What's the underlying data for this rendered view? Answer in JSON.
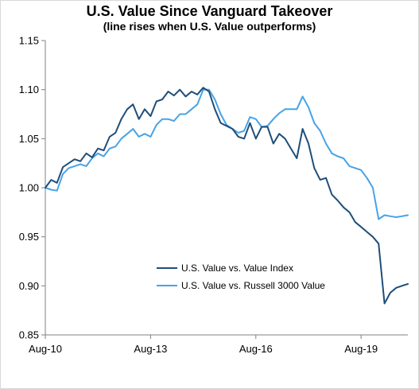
{
  "chart_data": {
    "type": "line",
    "title": "U.S. Value Since Vanguard Takeover",
    "subtitle": "(line rises when U.S. Value outperforms)",
    "xlabel": "",
    "ylabel": "",
    "ylim": [
      0.85,
      1.15
    ],
    "yticks": [
      "1.15",
      "1.10",
      "1.05",
      "1.00",
      "0.95",
      "0.90",
      "0.85"
    ],
    "xticks": [
      "Aug-10",
      "Aug-13",
      "Aug-16",
      "Aug-19"
    ],
    "x_range": [
      "Aug-10",
      "Dec-20"
    ],
    "grid": false,
    "legend_position": "bottom-center",
    "x": [
      "Aug-10",
      "Oct-10",
      "Dec-10",
      "Feb-11",
      "Apr-11",
      "Jun-11",
      "Aug-11",
      "Oct-11",
      "Dec-11",
      "Feb-12",
      "Apr-12",
      "Jun-12",
      "Aug-12",
      "Oct-12",
      "Dec-12",
      "Feb-13",
      "Apr-13",
      "Jun-13",
      "Aug-13",
      "Oct-13",
      "Dec-13",
      "Feb-14",
      "Apr-14",
      "Jun-14",
      "Aug-14",
      "Oct-14",
      "Dec-14",
      "Feb-15",
      "Apr-15",
      "Jun-15",
      "Aug-15",
      "Oct-15",
      "Dec-15",
      "Feb-16",
      "Apr-16",
      "Jun-16",
      "Aug-16",
      "Oct-16",
      "Dec-16",
      "Feb-17",
      "Apr-17",
      "Jun-17",
      "Aug-17",
      "Oct-17",
      "Dec-17",
      "Feb-18",
      "Apr-18",
      "Jun-18",
      "Aug-18",
      "Oct-18",
      "Dec-18",
      "Feb-19",
      "Apr-19",
      "Jun-19",
      "Aug-19",
      "Oct-19",
      "Dec-19",
      "Feb-20",
      "Apr-20",
      "Jun-20",
      "Aug-20",
      "Oct-20",
      "Dec-20"
    ],
    "series": [
      {
        "name": "U.S. Value vs. Value Index",
        "color": "#1f4e79",
        "values": [
          1.0,
          1.008,
          1.005,
          1.021,
          1.025,
          1.029,
          1.027,
          1.035,
          1.031,
          1.04,
          1.038,
          1.052,
          1.056,
          1.07,
          1.08,
          1.085,
          1.07,
          1.08,
          1.073,
          1.088,
          1.09,
          1.098,
          1.094,
          1.1,
          1.093,
          1.098,
          1.095,
          1.102,
          1.098,
          1.08,
          1.066,
          1.063,
          1.06,
          1.052,
          1.05,
          1.066,
          1.05,
          1.062,
          1.062,
          1.045,
          1.055,
          1.05,
          1.04,
          1.03,
          1.06,
          1.045,
          1.02,
          1.008,
          1.01,
          0.993,
          0.987,
          0.98,
          0.975,
          0.965,
          0.96,
          0.955,
          0.95,
          0.943,
          0.882,
          0.893,
          0.898,
          0.9,
          0.902
        ]
      },
      {
        "name": "U.S. Value vs. Russell 3000 Value",
        "color": "#47a3e6",
        "values": [
          1.0,
          0.998,
          0.997,
          1.014,
          1.02,
          1.022,
          1.024,
          1.022,
          1.03,
          1.035,
          1.032,
          1.04,
          1.042,
          1.05,
          1.055,
          1.06,
          1.052,
          1.055,
          1.052,
          1.064,
          1.07,
          1.07,
          1.068,
          1.075,
          1.075,
          1.08,
          1.085,
          1.1,
          1.1,
          1.09,
          1.075,
          1.064,
          1.06,
          1.056,
          1.058,
          1.072,
          1.07,
          1.062,
          1.063,
          1.07,
          1.076,
          1.08,
          1.08,
          1.08,
          1.093,
          1.082,
          1.066,
          1.058,
          1.045,
          1.035,
          1.032,
          1.03,
          1.022,
          1.02,
          1.018,
          1.01,
          1.0,
          0.968,
          0.972,
          0.971,
          0.97,
          0.971,
          0.972
        ]
      }
    ]
  }
}
